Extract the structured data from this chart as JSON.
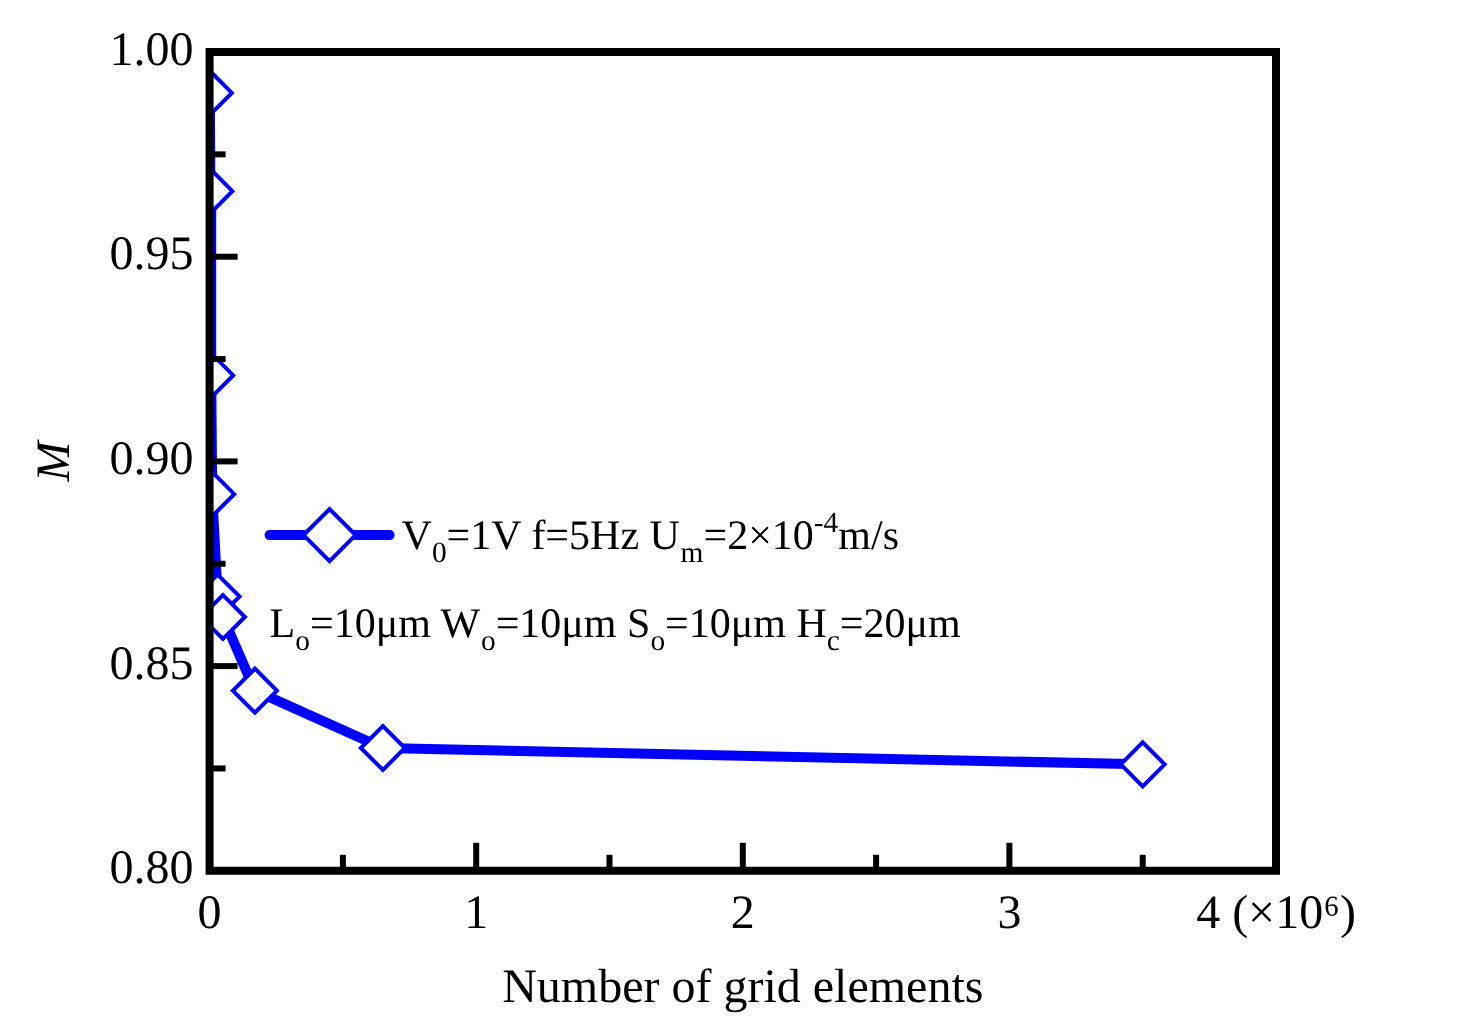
{
  "chart_data": {
    "type": "line",
    "xlabel": "Number of grid elements",
    "ylabel": "M",
    "x": [
      0.001,
      0.003,
      0.006,
      0.01,
      0.03,
      0.05,
      0.17,
      0.65,
      3.5
    ],
    "series": [
      {
        "name": "V$_{0}$=1V f=5Hz U$_{m}$=2×10$^{-4}$m/s",
        "color": "#0000ff",
        "values": [
          0.99,
          0.966,
          0.921,
          0.892,
          0.867,
          0.862,
          0.844,
          0.83,
          0.826
        ]
      }
    ],
    "xlim": [
      0,
      4
    ],
    "xticks": [
      0,
      {
        "value": 0.5,
        "label": null
      },
      1,
      {
        "value": 1.5,
        "label": null
      },
      2,
      {
        "value": 2.5,
        "label": null
      },
      3,
      {
        "value": 3.5,
        "label": null
      },
      {
        "value": 4,
        "label": "4 (×10⁶)"
      }
    ],
    "ylim": [
      0.8,
      1.0
    ],
    "yticks": [
      {
        "value": 0.8,
        "label": "0.80"
      },
      {
        "value": 0.825,
        "label": null
      },
      0.85,
      {
        "value": 0.875,
        "label": null
      },
      {
        "value": 0.9,
        "label": "0.90"
      },
      {
        "value": 0.925,
        "label": null
      },
      0.95,
      {
        "value": 0.975,
        "label": null
      },
      {
        "value": 1.0,
        "label": "1.00"
      }
    ],
    "annotations": [
      "L$_{o}$=10μm W$_{o}$=10μm S$_{o}$=10μm H$_{c}$=20μm"
    ],
    "legend": "left",
    "grid": false,
    "marker": "diamond",
    "line_style": "solid"
  }
}
